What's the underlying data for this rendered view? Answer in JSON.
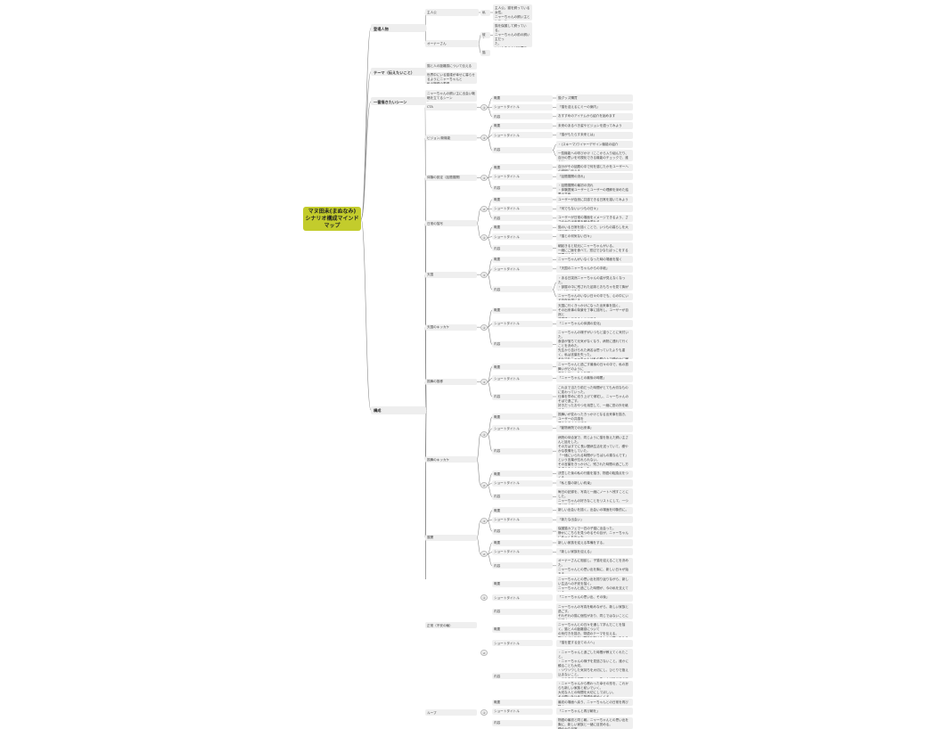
{
  "root": {
    "text": "マヌ田未(まぬなみ)\nシナリオ構成マインド\nマップ",
    "color": "#c3cc2c"
  },
  "branches": [
    {
      "text": "登場人物",
      "children": [
        {
          "text": "主人公",
          "children": [
            {
              "text": "私",
              "children": [
                {
                  "text": "主人公。猫を飼っている女性。\nニャーちゃんの飼い主として、ニ\nャーちゃんを守る。"
                }
              ]
            }
          ]
        },
        {
          "text": "オーナーさん",
          "children": [
            {
              "text": "彼女",
              "children": [
                {
                  "text": "猫を保護して飼っている。\nニャーちゃんの前の飼い主だっ\nた。\nいい人なことが目標で\n人を信頼してくれる仲間。"
                }
              ]
            },
            {
              "text": "猫",
              "children": []
            }
          ]
        }
      ]
    },
    {
      "text": "テーマ（伝えたいこと）",
      "children": [
        {
          "text": "猫と人の距離感について伝える"
        },
        {
          "text": "世界中にいる猫達が幸せに暮らせるようにニャーちゃんと\n私の物語の表現"
        }
      ]
    },
    {
      "text": "一番描きたいシーン",
      "children": [
        {
          "text": "ニャーちゃんの飼い主に出会い戦略を立てるシーン\nン"
        },
        {
          "text": "ニャーちゃんと笑った思い出"
        }
      ]
    },
    {
      "text": "構成",
      "sections": [
        {
          "text": "CTA",
          "parts": [
            {
              "num": "①",
              "rows": [
                {
                  "label": "概要",
                  "contents": [
                    "猫グッズ購買"
                  ]
                },
                {
                  "label": "ショートタイトル",
                  "contents": [
                    "「猫を迎えるにミーの案内」"
                  ]
                },
                {
                  "label": "内容",
                  "contents": [
                    "おすすめのアイテムから紹介を始めます"
                  ]
                }
              ]
            }
          ]
        },
        {
          "text": "ビジョン/新機能",
          "parts": [
            {
              "num": "①",
              "rows": [
                {
                  "label": "概要",
                  "contents": [
                    "未来のあるべき姿やビジョンを語ってみよう"
                  ]
                },
                {
                  "label": "ショートタイトル",
                  "contents": [
                    "「猫がもたらす未来とは」"
                  ]
                },
                {
                  "label": "内容",
                  "contents": [
                    "・(スキーマ)ワイヤーデザイン機能の紹介",
                    "一覧機能への呼びかけ（ここから入り組んだり、自分の思いを可視化できる機能のチェックで、誰かと\n繋いでくれるからスキンで見直せるように）"
                  ]
                }
              ]
            }
          ]
        },
        {
          "text": "体験の設定（話題展開）",
          "parts": [
            {
              "num": "①",
              "rows": [
                {
                  "label": "概要",
                  "contents": [
                    "自分がその話題の中で何を感じたかをユーザーへの説明に伝える"
                  ]
                },
                {
                  "label": "ショートタイトル",
                  "contents": [
                    "「話題展開の流れ」"
                  ]
                },
                {
                  "label": "内容",
                  "contents": [
                    "・話題展開の最初の流れ\n・体験提案ユーザーとユーザーの理解を深めた結果の共有"
                  ]
                }
              ]
            }
          ]
        },
        {
          "text": "日常の描写",
          "parts": [
            {
              "num": "②",
              "rows": [
                {
                  "label": "概要",
                  "contents": [
                    "ユーザーが自然に共感できる日常を描いてみよう"
                  ]
                },
                {
                  "label": "ショートタイトル",
                  "contents": [
                    "「何でもないいつもの日々」"
                  ]
                },
                {
                  "label": "内容",
                  "contents": [
                    "ユーザーが日常の場面をイメージできるよう、ささやかな出来事を積み重ねる。"
                  ]
                }
              ]
            },
            {
              "num": "①",
              "rows": [
                {
                  "label": "概要",
                  "contents": [
                    "猫のいる日常を描くことで、いつもの暮らしを大切に感じてもらう。"
                  ]
                },
                {
                  "label": "ショートタイトル",
                  "contents": [
                    "「猫との何気ない日々」"
                  ]
                },
                {
                  "label": "内容",
                  "contents": [
                    "朝起きると枕元にニャーちゃんがいる。\n一緒にご飯を食べて、窓辺でひなたぼっこをする時間が心地よい。"
                  ]
                }
              ]
            }
          ]
        },
        {
          "text": "天国",
          "parts": [
            {
              "num": "①",
              "rows": [
                {
                  "label": "概要",
                  "contents": [
                    "ニャーちゃんがいなくなった時の場面を描く"
                  ]
                },
                {
                  "label": "ショートタイトル",
                  "contents": [
                    "「天国のニャーちゃんからの手紙」"
                  ]
                },
                {
                  "label": "内容",
                  "contents": [
                    "・ある日突然ニャーちゃんの姿が見えなくなった。\n・部屋の中に残された足跡とおもちゃを見て胸がいっぱいになる。\n・ニャーちゃんとの思い出を振り返り、穏やかな気持ちで空を見上げる。",
                    "ニャーちゃんのいない日々の中でも、心の中にいる存在を感じる。"
                  ]
                }
              ]
            }
          ]
        },
        {
          "text": "天国のキッカケ",
          "parts": [
            {
              "num": "①",
              "rows": [
                {
                  "label": "概要",
                  "contents": [
                    "天国に行くきっかけになった出来事を描く。\nその出来事の背景を丁寧に描写し、ユーザーが自然と\n感情移入できるようにする。"
                  ]
                },
                {
                  "label": "ショートタイトル",
                  "contents": [
                    "「ニャーちゃんの体調の変化」"
                  ]
                },
                {
                  "label": "内容",
                  "contents": [
                    "ニャーちゃんの様子がいつもと違うことに気付いた。\n食欲が落ちて元気がなくなり、病院に連れて行くことを決めた。\n先生から告げられた病名は思っていたよりも重く、私は言葉を失った。\nそれでもニャーちゃんは私の膝の上で穏やかに眠っていた。\n一緒に過ごせる時間を大切にしようと心に決めた。\n毎日を特別な日として過ごしていく。"
                  ]
                }
              ]
            }
          ]
        },
        {
          "text": "振舞の推移",
          "parts": [
            {
              "num": "①",
              "rows": [
                {
                  "label": "概要",
                  "contents": [
                    "ニャーちゃんと過ごす最後の日々の中で、私の振舞いがどのように\n変化していったかを描く。"
                  ]
                },
                {
                  "label": "ショートタイトル",
                  "contents": [
                    "「ニャーちゃんとの最後の時間」"
                  ]
                },
                {
                  "label": "内容",
                  "contents": [
                    "これまで当たり前だった時間がとても大切なものに変わっていった。\n仕事を早めに切り上げて帰宅し、ニャーちゃんのそばで過ごす。\n好きだったおやつを用意して、一緒に窓の外を眺める。\n少しずつ弱っていく姿を見ながらも、笑顔でいようと決めた。\n最後の日まで、ありがとうを伝え続けた。"
                  ]
                }
              ]
            }
          ]
        },
        {
          "text": "振舞のキッカケ",
          "parts": [
            {
              "num": "①",
              "rows": [
                {
                  "label": "概要",
                  "contents": [
                    "振舞いが変わったきっかけとなる出来事を描き、ユーザーの共感を\n得られるようにする。"
                  ]
                },
                {
                  "label": "ショートタイトル",
                  "contents": [
                    "「動物病院での出来事」"
                  ]
                },
                {
                  "label": "内容",
                  "contents": [
                    "病院の待合室で、同じように猫を抱えた飼い主さんと話をした。\nその方はすでに長い闘病生活を送っていて、穏やかな表情をしていた。\n「一緒にいられる時間がいちばんの薬なんです」という言葉が忘れられない。\nその言葉をきっかけに、残された時間の過ごし方を考えるようになった。\n私はニャーちゃんのために何ができるかを考えた。\n不安で泣いてばかりいた自分を変えようと思った。\nニャーちゃんの前では笑顔でいることにした。"
                  ]
                }
              ]
            },
            {
              "num": "②",
              "rows": [
                {
                  "label": "概要",
                  "contents": [
                    "決意した後の私の行動を描き、物語の転換点をつくる。"
                  ]
                },
                {
                  "label": "ショートタイトル",
                  "contents": [
                    "「私と猫の新しい約束」"
                  ]
                },
                {
                  "label": "内容",
                  "contents": [
                    "毎日の記録を、写真と一緒にノートへ残すことにした。\nニャーちゃんの好きなことをリストにして、一つずつ叶えていく。\nニャーちゃんとの約束を守るために。"
                  ]
                }
              ]
            }
          ]
        },
        {
          "text": "展開",
          "parts": [
            {
              "num": "①",
              "rows": [
                {
                  "label": "概要",
                  "contents": [
                    "新しい出会いを描く。出会いの場面を印象的に。"
                  ]
                },
                {
                  "label": "ショートタイトル",
                  "contents": [
                    "「新たな出会い」"
                  ]
                },
                {
                  "label": "内容",
                  "contents": [
                    "保護猫カフェで一匹の子猫に出会った。\n静かにこちらを見つめるその目が、ニャーちゃんにそっくりだった。"
                  ]
                }
              ]
            },
            {
              "num": "②",
              "rows": [
                {
                  "label": "概要",
                  "contents": [
                    "新しい家族を迎える準備をする。"
                  ]
                },
                {
                  "label": "ショートタイトル",
                  "contents": [
                    "「新しい家族を迎える」"
                  ]
                },
                {
                  "label": "内容",
                  "contents": [
                    "オーナーさんに相談し、子猫を迎えることを決めた。\nニャーちゃんとの思い出を胸に、新しい日々が始まる。\n部屋に少しずつ新しいものが増えていく。"
                  ]
                }
              ]
            }
          ]
        },
        {
          "text": "正常（不安の輪）",
          "parts": [
            {
              "num": "①",
              "rows": [
                {
                  "label": "概要",
                  "contents": [
                    "ニャーちゃんとの思い出を振り返りながら、新しい生活への不安を描く。\nニャーちゃんと過ごした時間が、今の私を支えている。\nニャーちゃんと出会えたことに感謝している。"
                  ]
                },
                {
                  "label": "ショートタイトル",
                  "contents": [
                    "「ニャーちゃんの思い出、その後」"
                  ]
                },
                {
                  "label": "内容",
                  "contents": [
                    "ニャーちゃんの写真を眺めながら、新しい家族と過ごす。\nそれぞれの猫に個性があり、同じではないことに気付く。\n一緒に過ごした時間を大切にしながら、前を向いて歩いていく。"
                  ]
                }
              ]
            },
            {
              "num": "②",
              "rows": [
                {
                  "label": "概要",
                  "contents": [
                    "ニャーちゃんとの日々を通して学んだことを描く。猫と人の距離感について\nの気付きを描き、物語のテーマを伝える。\n猫と人がより良い関係を築けるように願いを込めて。"
                  ]
                },
                {
                  "label": "ショートタイトル",
                  "contents": [
                    "「猫を愛する全ての人へ」"
                  ]
                },
                {
                  "label": "内容",
                  "contents": [
                    "・ニャーちゃんと過ごした時間が教えてくれたこと。\n・ニャーちゃんの様子を見逃さないこと。誰かに頼ることも大切。\n・ソワソワした気持ちを大切にし、ひとりで抱え込まないこと。\n・これまでの経験からニャーちゃんが私に伝えてくれたこと。\n私の様子を見て寄り添ってくれたから、今の私がある。猫と人の距離感を大切に\n思う。",
                    "・ニャーちゃんから教わった幸せの形を、これからも新しい家族と紡いでいく。\n大切な人との時間を大切にしてほしい。\nその願いを込めて物語を締めくくる。"
                  ]
                }
              ]
            }
          ]
        },
        {
          "text": "ループ",
          "parts": [
            {
              "num": "①",
              "rows": [
                {
                  "label": "概要",
                  "contents": [
                    "最初の場面へ戻り、ニャーちゃんとの日常を再び描く。"
                  ]
                },
                {
                  "label": "ショートタイトル",
                  "contents": [
                    "「ニャーちゃんと再び朝を」"
                  ]
                },
                {
                  "label": "内容",
                  "contents": [
                    "物語の最初と同じ朝。ニャーちゃんとの思い出を胸に、新しい家族と一緒に目覚める。\n穏やかな日常。"
                  ]
                }
              ]
            }
          ]
        }
      ]
    }
  ]
}
